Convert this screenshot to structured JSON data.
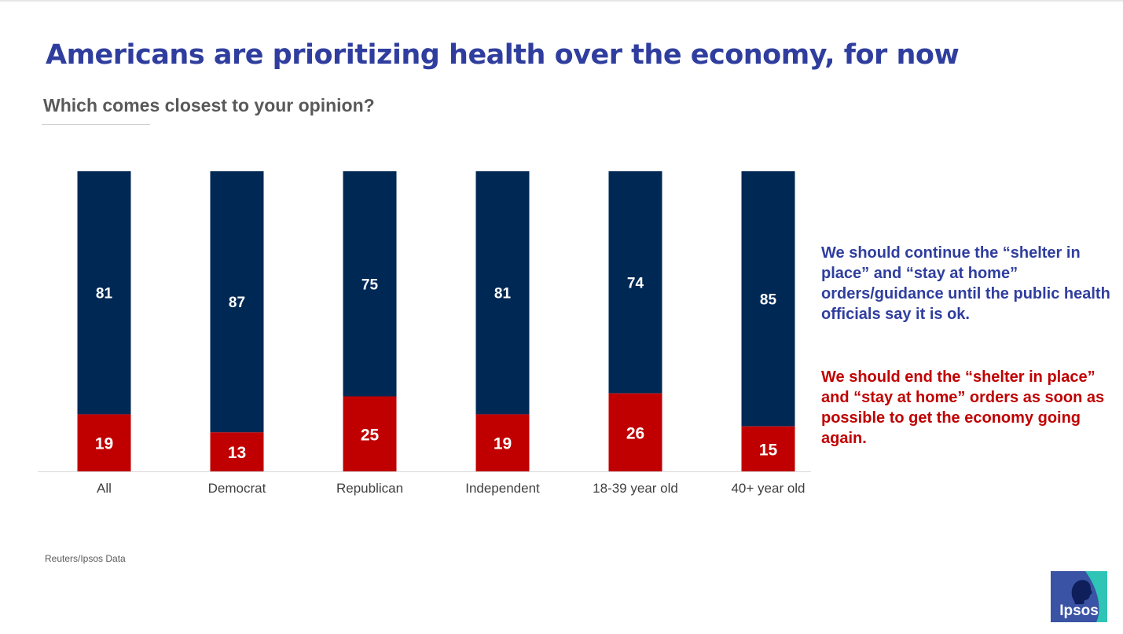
{
  "title": "Americans are prioritizing health over the economy, for now",
  "subtitle": "Which comes closest to your opinion?",
  "source": "Reuters/Ipsos Data",
  "logo": {
    "text": "Ipsos",
    "icon": "ipsos-logo-icon"
  },
  "legend": {
    "continue": "We should continue the “shelter in place” and “stay at home” orders/guidance until the public health officials say it is ok.",
    "end": "We should end the “shelter in place” and “stay at home” orders as soon as possible to get the economy going again."
  },
  "colors": {
    "continue": "#002855",
    "end": "#c00000",
    "title": "#2f3e9e"
  },
  "chart_data": {
    "type": "bar",
    "stacked": true,
    "categories": [
      "All",
      "Democrat",
      "Republican",
      "Independent",
      "18-39 year old",
      "40+ year old"
    ],
    "series": [
      {
        "name": "We should end the “shelter in place” and “stay at home” orders as soon as possible to get the economy going again.",
        "values": [
          19,
          13,
          25,
          19,
          26,
          15
        ]
      },
      {
        "name": "We should continue the “shelter in place” and “stay at home” orders/guidance until the public health officials say it is ok.",
        "values": [
          81,
          87,
          75,
          81,
          74,
          85
        ]
      }
    ],
    "ylim": [
      0,
      100
    ],
    "grid": false,
    "legend_position": "right"
  }
}
